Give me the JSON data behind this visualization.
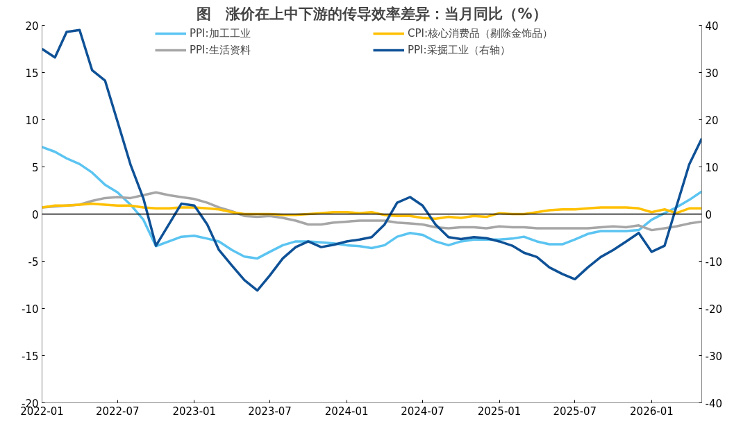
{
  "chart_data": {
    "type": "line",
    "title": "图　涨价在上中下游的传导效率差异：当月同比（%）",
    "x": [
      "2022-01",
      "2022-02",
      "2022-03",
      "2022-04",
      "2022-05",
      "2022-06",
      "2022-07",
      "2022-08",
      "2022-09",
      "2022-10",
      "2022-11",
      "2022-12",
      "2023-01",
      "2023-02",
      "2023-03",
      "2023-04",
      "2023-05",
      "2023-06",
      "2023-07",
      "2023-08",
      "2023-09",
      "2023-10",
      "2023-11",
      "2023-12",
      "2024-01",
      "2024-02",
      "2024-03",
      "2024-04",
      "2024-05",
      "2024-06",
      "2024-07",
      "2024-08",
      "2024-09",
      "2024-10",
      "2024-11",
      "2024-12",
      "2025-01",
      "2025-02",
      "2025-03",
      "2025-04",
      "2025-05",
      "2025-06",
      "2025-07",
      "2025-08",
      "2025-09",
      "2025-10",
      "2025-11",
      "2025-12",
      "2026-01",
      "2026-02",
      "2026-03",
      "2026-04",
      "2026-05"
    ],
    "series": [
      {
        "name": "PPI:加工工业",
        "color": "#5bc4f1",
        "values": [
          7.1,
          6.6,
          5.9,
          5.3,
          4.4,
          3.1,
          2.3,
          1,
          -0.6,
          -3.4,
          -2.9,
          -2.4,
          -2.3,
          -2.6,
          -2.9,
          -3.8,
          -4.5,
          -4.7,
          -4,
          -3.3,
          -2.9,
          -2.9,
          -3,
          -3.1,
          -3.3,
          -3.4,
          -3.6,
          -3.3,
          -2.4,
          -2,
          -2.2,
          -2.9,
          -3.3,
          -2.9,
          -2.7,
          -2.7,
          -2.7,
          -2.6,
          -2.4,
          -2.9,
          -3.2,
          -3.2,
          -2.7,
          -2.1,
          -1.8,
          -1.8,
          -1.8,
          -1.7,
          -0.6,
          0.1,
          0.7,
          1.5,
          2.4
        ]
      },
      {
        "name": "PPI:生活资料",
        "color": "#a6a6a6",
        "values": [
          0.7,
          0.8,
          0.9,
          1,
          1.4,
          1.7,
          1.8,
          1.7,
          2,
          2.3,
          2,
          1.8,
          1.6,
          1.2,
          0.7,
          0.3,
          -0.2,
          -0.3,
          -0.2,
          -0.4,
          -0.7,
          -1.1,
          -1.1,
          -0.9,
          -0.8,
          -0.7,
          -0.7,
          -0.7,
          -0.9,
          -1,
          -1.1,
          -1.4,
          -1.5,
          -1.4,
          -1.4,
          -1.5,
          -1.3,
          -1.4,
          -1.4,
          -1.5,
          -1.5,
          -1.5,
          -1.5,
          -1.5,
          -1.4,
          -1.3,
          -1.4,
          -1.2,
          -1.7,
          -1.5,
          -1.3,
          -1,
          -0.8
        ]
      },
      {
        "name": "CPI:核心消费品（剔除金饰品）",
        "color": "#ffc000",
        "values": [
          0.7,
          0.9,
          0.9,
          1,
          1.1,
          1,
          0.9,
          0.9,
          0.7,
          0.6,
          0.6,
          0.7,
          0.7,
          0.6,
          0.5,
          0.2,
          0,
          0,
          0,
          -0.1,
          -0.1,
          0,
          0.1,
          0.2,
          0.2,
          0.1,
          0.2,
          -0.1,
          -0.2,
          -0.2,
          -0.4,
          -0.5,
          -0.3,
          -0.4,
          -0.2,
          -0.3,
          0.1,
          0,
          0,
          0.2,
          0.4,
          0.5,
          0.5,
          0.6,
          0.7,
          0.7,
          0.7,
          0.6,
          0.2,
          0.5,
          0.1,
          0.6,
          0.6
        ]
      },
      {
        "name": "PPI:采掘工业（右轴）",
        "color": "#0e5196",
        "axis": "y2",
        "values": [
          35,
          33.2,
          38.6,
          39,
          30.5,
          28.3,
          19.6,
          10.5,
          3.3,
          -6.7,
          -2.2,
          2.2,
          1.8,
          -2.2,
          -7.6,
          -10.9,
          -14,
          -16.2,
          -13,
          -9.4,
          -7,
          -5.8,
          -7,
          -6.5,
          -5.8,
          -5.4,
          -4.9,
          -2.2,
          2.4,
          3.6,
          1.8,
          -2.2,
          -4.9,
          -5.3,
          -4.9,
          -5.1,
          -5.8,
          -6.7,
          -8.2,
          -9.1,
          -11.3,
          -12.7,
          -13.8,
          -11.3,
          -9.1,
          -7.6,
          -5.8,
          -4,
          -8,
          -6.7,
          1.5,
          10.5,
          16
        ]
      }
    ],
    "xlim": [
      "2022-01",
      "2026-05"
    ],
    "xticks": [
      {
        "value": "2022-01",
        "label": "2022-01"
      },
      {
        "value": "2022-07",
        "label": "2022-07"
      },
      {
        "value": "2023-01",
        "label": "2023-01"
      },
      {
        "value": "2023-07",
        "label": "2023-07"
      },
      {
        "value": "2024-01",
        "label": "2024-01"
      },
      {
        "value": "2024-07",
        "label": "2024-07"
      },
      {
        "value": "2025-01",
        "label": "2025-01"
      },
      {
        "value": "2025-07",
        "label": "2025-07"
      },
      {
        "value": "2026-01",
        "label": "2026-01"
      }
    ],
    "ylim": [
      -20,
      20
    ],
    "yticks": [
      -20,
      -15,
      -10,
      -5,
      0,
      5,
      10,
      15,
      20
    ],
    "y2lim": [
      -40,
      40
    ],
    "y2ticks": [
      -40,
      -30,
      -20,
      -10,
      0,
      10,
      20,
      30,
      40
    ],
    "ref_lines": [
      {
        "axis": "y",
        "value": 0,
        "color": "#000000"
      }
    ],
    "legend": "top",
    "grid": false,
    "marker": "none",
    "line_style": "solid"
  }
}
